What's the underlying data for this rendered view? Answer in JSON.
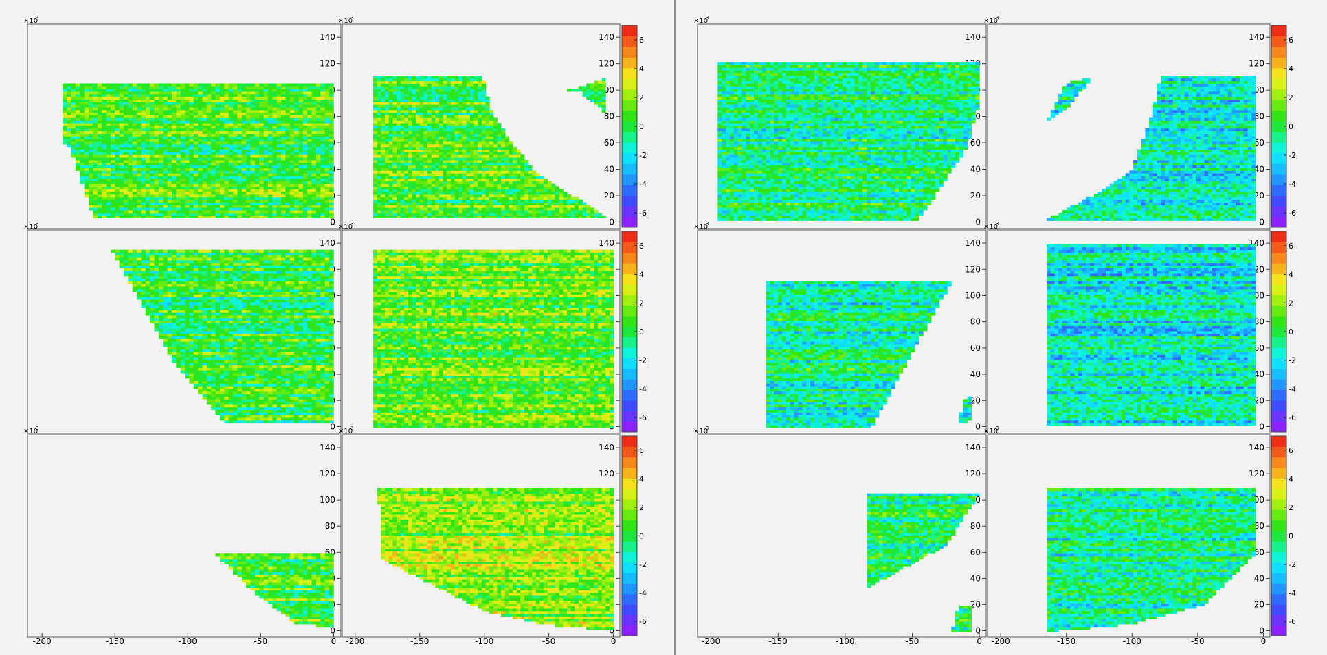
{
  "colorbar": {
    "range": [
      -7,
      7
    ],
    "tick_labels": [
      "6",
      "4",
      "2",
      "0",
      "-2",
      "-4",
      "-6"
    ],
    "tick_values": [
      6,
      4,
      2,
      0,
      -2,
      -4,
      -6
    ],
    "palette": [
      "#8b22ff",
      "#6a35ff",
      "#3f4dff",
      "#2d6cff",
      "#2196ff",
      "#18bdff",
      "#10dfff",
      "#10f3d8",
      "#17f28a",
      "#1ee83c",
      "#33e414",
      "#66ea10",
      "#a2ef12",
      "#d9f017",
      "#f4e21c",
      "#f7b21c",
      "#f6871b",
      "#f25a19",
      "#ee2d16"
    ]
  },
  "axis_common": {
    "x_tick_labels": [
      "-200",
      "-150",
      "-100",
      "-50",
      "0"
    ],
    "x_tick_values": [
      -200,
      -150,
      -100,
      -50,
      0
    ],
    "y_tick_labels": [
      "0",
      "20",
      "40",
      "60",
      "80",
      "100",
      "120",
      "140"
    ],
    "y_tick_values": [
      0,
      20,
      40,
      60,
      80,
      100,
      120,
      140
    ],
    "y_exponent_label": "×10",
    "y_exponent_sup": "3",
    "xlim": [
      -210,
      5
    ],
    "ylim": [
      -5,
      150
    ]
  },
  "chart_data": [
    {
      "type": "heatmap",
      "group": "left",
      "row": 0,
      "col": 0,
      "mean": 0.6,
      "seed": 11,
      "region": [
        [
          -187,
          106
        ],
        [
          0,
          106
        ],
        [
          0,
          3
        ],
        [
          -165,
          3
        ],
        [
          -180,
          55
        ],
        [
          -187,
          62
        ]
      ]
    },
    {
      "type": "heatmap",
      "group": "left",
      "row": 0,
      "col": 1,
      "mean": 0.9,
      "seed": 12,
      "region": [
        [
          -185,
          112
        ],
        [
          -102,
          112
        ],
        [
          -95,
          85
        ],
        [
          -80,
          62
        ],
        [
          -60,
          38
        ],
        [
          -35,
          22
        ],
        [
          -15,
          10
        ],
        [
          -5,
          3
        ],
        [
          -185,
          3
        ]
      ],
      "islands": [
        [
          [
            -35,
            100
          ],
          [
            -15,
            106
          ],
          [
            -5,
            110
          ],
          [
            -5,
            82
          ],
          [
            -25,
            98
          ]
        ]
      ]
    },
    {
      "type": "heatmap",
      "group": "left",
      "row": 1,
      "col": 0,
      "mean": 0.2,
      "seed": 13,
      "region": [
        [
          -153,
          135
        ],
        [
          0,
          135
        ],
        [
          0,
          3
        ],
        [
          -75,
          3
        ],
        [
          -110,
          50
        ],
        [
          -135,
          100
        ]
      ]
    },
    {
      "type": "heatmap",
      "group": "left",
      "row": 1,
      "col": 1,
      "mean": 1.2,
      "seed": 14,
      "region": [
        [
          -185,
          135
        ],
        [
          0,
          135
        ],
        [
          0,
          0
        ],
        [
          -185,
          0
        ]
      ]
    },
    {
      "type": "heatmap",
      "group": "left",
      "row": 2,
      "col": 0,
      "mean": 0.8,
      "seed": 15,
      "region": [
        [
          -82,
          60
        ],
        [
          0,
          60
        ],
        [
          0,
          3
        ],
        [
          -25,
          5
        ],
        [
          -55,
          30
        ],
        [
          -75,
          52
        ]
      ]
    },
    {
      "type": "heatmap",
      "group": "left",
      "row": 2,
      "col": 1,
      "mean": 1.8,
      "seed": 16,
      "region": [
        [
          -182,
          110
        ],
        [
          0,
          110
        ],
        [
          0,
          0
        ],
        [
          -55,
          5
        ],
        [
          -100,
          15
        ],
        [
          -140,
          35
        ],
        [
          -180,
          55
        ]
      ]
    },
    {
      "type": "heatmap",
      "group": "right",
      "row": 0,
      "col": 0,
      "mean": -0.6,
      "seed": 21,
      "region": [
        [
          -195,
          122
        ],
        [
          0,
          122
        ],
        [
          0,
          90
        ],
        [
          -10,
          55
        ],
        [
          -45,
          2
        ],
        [
          -195,
          2
        ]
      ]
    },
    {
      "type": "heatmap",
      "group": "right",
      "row": 0,
      "col": 1,
      "mean": -1.6,
      "seed": 22,
      "region": [
        [
          -78,
          112
        ],
        [
          -5,
          112
        ],
        [
          -5,
          2
        ],
        [
          -165,
          2
        ],
        [
          -130,
          20
        ],
        [
          -100,
          40
        ],
        [
          -85,
          80
        ]
      ],
      "islands": [
        [
          [
            -150,
            105
          ],
          [
            -130,
            110
          ],
          [
            -150,
            85
          ],
          [
            -165,
            75
          ]
        ]
      ]
    },
    {
      "type": "heatmap",
      "group": "right",
      "row": 1,
      "col": 0,
      "mean": -1.1,
      "seed": 23,
      "region": [
        [
          -160,
          112
        ],
        [
          -20,
          112
        ],
        [
          -80,
          0
        ],
        [
          -160,
          0
        ]
      ],
      "islands": [
        [
          [
            -12,
            20
          ],
          [
            -5,
            25
          ],
          [
            -5,
            5
          ],
          [
            -15,
            3
          ]
        ]
      ]
    },
    {
      "type": "heatmap",
      "group": "right",
      "row": 1,
      "col": 1,
      "mean": -1.8,
      "seed": 24,
      "region": [
        [
          -165,
          140
        ],
        [
          -5,
          140
        ],
        [
          -5,
          2
        ],
        [
          -165,
          2
        ]
      ]
    },
    {
      "type": "heatmap",
      "group": "right",
      "row": 2,
      "col": 0,
      "mean": -0.4,
      "seed": 25,
      "region": [
        [
          -85,
          105
        ],
        [
          0,
          105
        ],
        [
          -25,
          65
        ],
        [
          -85,
          32
        ]
      ],
      "islands": [
        [
          [
            -15,
            20
          ],
          [
            -5,
            18
          ],
          [
            -5,
            0
          ],
          [
            -20,
            0
          ]
        ]
      ]
    },
    {
      "type": "heatmap",
      "group": "right",
      "row": 2,
      "col": 1,
      "mean": -0.9,
      "seed": 26,
      "region": [
        [
          -165,
          110
        ],
        [
          -5,
          110
        ],
        [
          -5,
          60
        ],
        [
          -45,
          20
        ],
        [
          -100,
          5
        ],
        [
          -155,
          0
        ],
        [
          -165,
          0
        ]
      ]
    }
  ]
}
